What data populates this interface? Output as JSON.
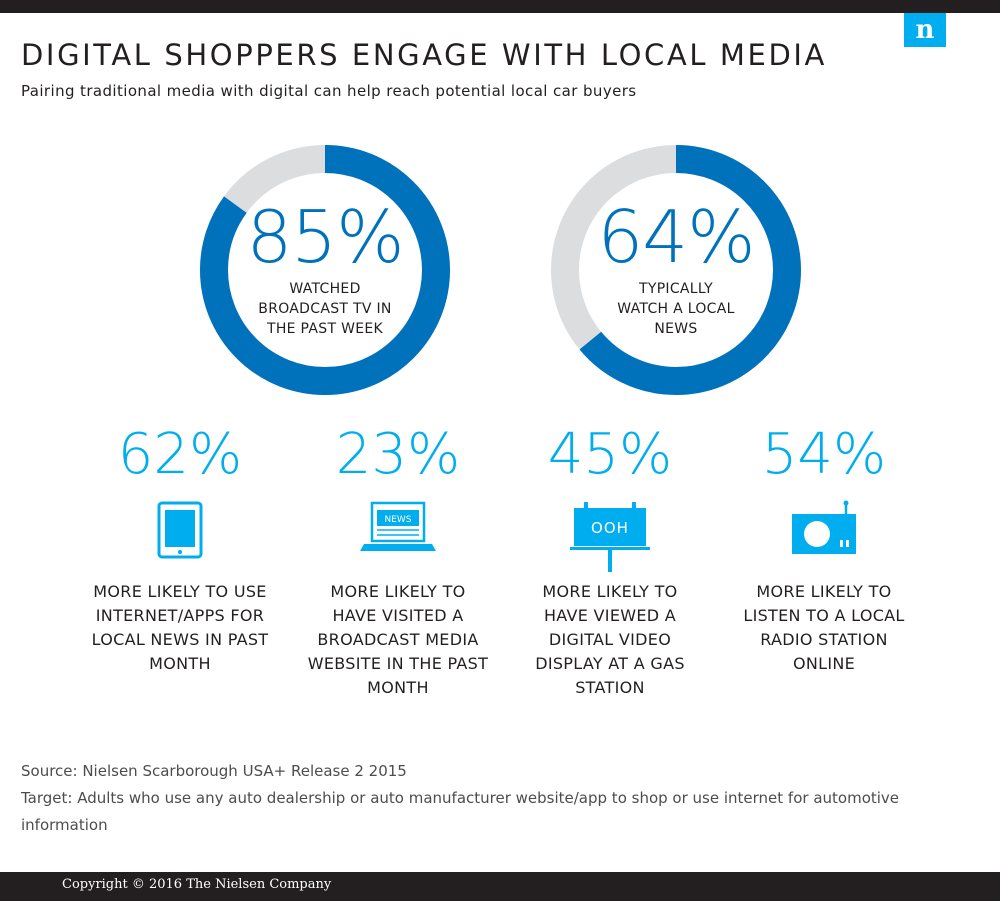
{
  "header": {
    "title": "DIGITAL SHOPPERS ENGAGE WITH LOCAL MEDIA",
    "subtitle": "Pairing traditional media with digital can help reach potential local car buyers",
    "logo_letter": "n"
  },
  "colors": {
    "dark_blue": "#0072bc",
    "light_blue": "#00aeef",
    "grey": "#dcdddf",
    "dark": "#231f20"
  },
  "chart_data": {
    "type": "pie",
    "donuts": [
      {
        "value": 85,
        "label": "85%",
        "text": "WATCHED BROADCAST TV IN THE PAST WEEK",
        "lines": [
          "WATCHED",
          "BROADCAST TV IN",
          "THE PAST WEEK"
        ]
      },
      {
        "value": 64,
        "label": "64%",
        "text": "TYPICALLY WATCH A LOCAL NEWS",
        "lines": [
          "TYPICALLY",
          "WATCH A LOCAL",
          "NEWS"
        ]
      }
    ]
  },
  "stats": [
    {
      "pct": "62%",
      "icon": "tablet-icon",
      "lines": [
        "MORE LIKELY TO USE",
        "INTERNET/APPS FOR",
        "LOCAL NEWS IN PAST",
        "MONTH"
      ]
    },
    {
      "pct": "23%",
      "icon": "laptop-news-icon",
      "icon_text": "NEWS",
      "lines": [
        "MORE LIKELY TO",
        "HAVE VISITED A",
        "BROADCAST MEDIA",
        "WEBSITE IN THE PAST",
        "MONTH"
      ]
    },
    {
      "pct": "45%",
      "icon": "billboard-icon",
      "icon_text": "OOH",
      "lines": [
        "MORE LIKELY TO",
        "HAVE VIEWED A",
        "DIGITAL VIDEO",
        "DISPLAY AT A GAS",
        "STATION"
      ]
    },
    {
      "pct": "54%",
      "icon": "radio-icon",
      "lines": [
        "MORE LIKELY TO",
        "LISTEN TO A LOCAL",
        "RADIO STATION",
        "ONLINE"
      ]
    }
  ],
  "source": {
    "line1": "Source: Nielsen Scarborough USA+ Release 2 2015",
    "line2": "Target: Adults who use any auto dealership or auto manufacturer website/app to shop or use internet for automotive information"
  },
  "footer": {
    "copyright": "Copyright © 2016 The Nielsen Company"
  }
}
